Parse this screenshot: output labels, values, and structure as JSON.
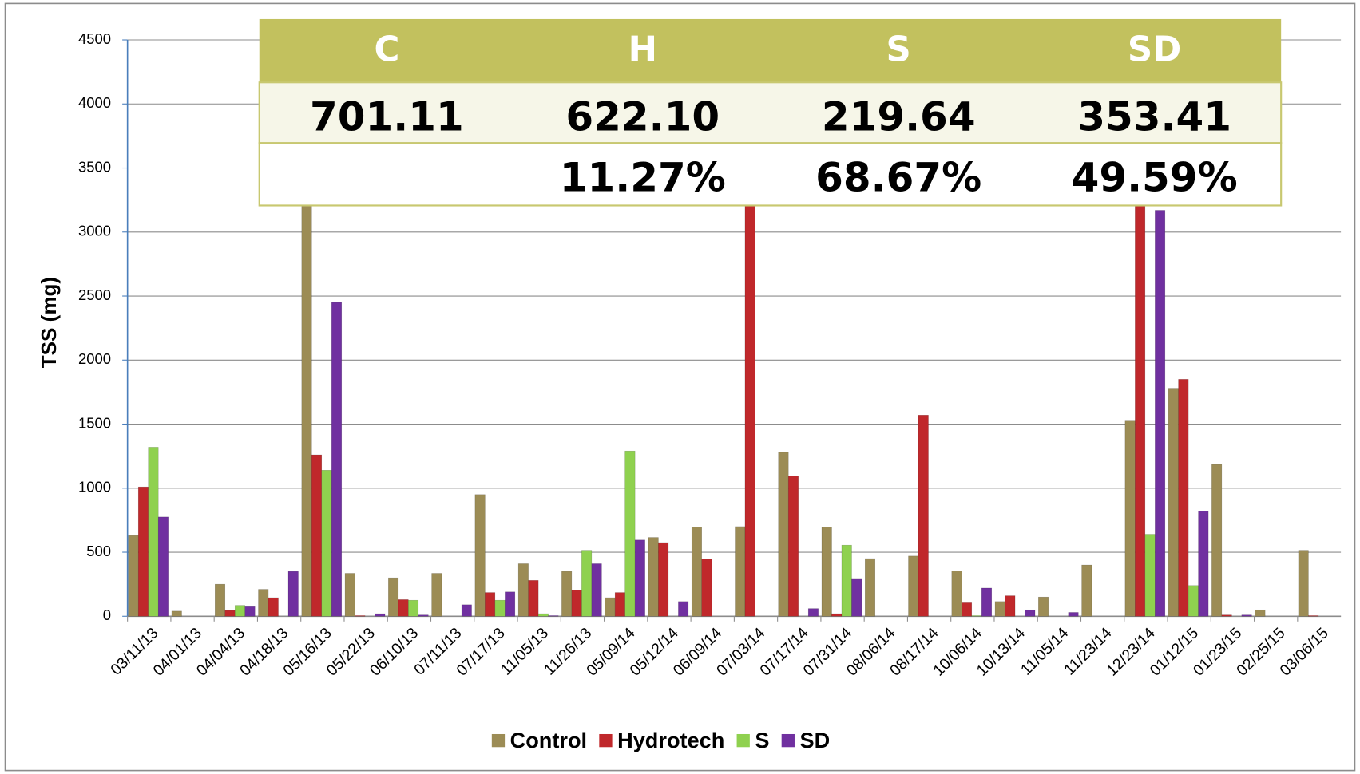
{
  "chart_data": {
    "type": "bar",
    "y_label": "TSS (mg)",
    "categories": [
      "03/11/13",
      "04/01/13",
      "04/04/13",
      "04/18/13",
      "05/16/13",
      "05/22/13",
      "06/10/13",
      "07/11/13",
      "07/17/13",
      "11/05/13",
      "11/26/13",
      "05/09/14",
      "05/12/14",
      "06/09/14",
      "07/03/14",
      "07/17/14",
      "07/31/14",
      "08/06/14",
      "08/17/14",
      "10/06/14",
      "10/13/14",
      "11/05/14",
      "11/23/14",
      "12/23/14",
      "01/12/15",
      "01/23/15",
      "02/25/15",
      "03/06/15"
    ],
    "series": [
      {
        "name": "Control",
        "color": "#9c8c55",
        "values": [
          630,
          40,
          250,
          210,
          3300,
          335,
          300,
          335,
          950,
          410,
          350,
          145,
          615,
          695,
          700,
          1280,
          695,
          450,
          470,
          355,
          115,
          150,
          400,
          1530,
          1780,
          1185,
          50,
          515
        ]
      },
      {
        "name": "Hydrotech",
        "color": "#c0282b",
        "values": [
          1010,
          0,
          45,
          145,
          1260,
          5,
          130,
          0,
          185,
          280,
          205,
          185,
          575,
          445,
          3300,
          1095,
          20,
          0,
          1570,
          105,
          160,
          0,
          0,
          3300,
          1850,
          10,
          0,
          5
        ]
      },
      {
        "name": "S",
        "color": "#8fd14f",
        "values": [
          1320,
          0,
          85,
          0,
          1140,
          0,
          125,
          0,
          125,
          20,
          515,
          1290,
          0,
          0,
          0,
          0,
          555,
          0,
          0,
          5,
          0,
          0,
          0,
          640,
          240,
          0,
          0,
          0
        ]
      },
      {
        "name": "SD",
        "color": "#7030a0",
        "values": [
          775,
          0,
          75,
          350,
          2450,
          20,
          10,
          90,
          190,
          5,
          410,
          595,
          115,
          0,
          0,
          60,
          295,
          0,
          0,
          220,
          50,
          30,
          0,
          3170,
          820,
          10,
          0,
          0
        ]
      }
    ],
    "ylim": [
      0,
      4500
    ],
    "yticks": [
      0,
      500,
      1000,
      1500,
      2000,
      2500,
      3000,
      3500,
      4000,
      4500
    ],
    "grid": true,
    "legend": "bottom"
  },
  "table": {
    "headers": [
      "C",
      "H",
      "S",
      "SD"
    ],
    "rows": [
      [
        "701.11",
        "622.10",
        "219.64",
        "353.41"
      ],
      [
        "11.27%",
        "68.67%",
        "49.59%"
      ]
    ]
  }
}
